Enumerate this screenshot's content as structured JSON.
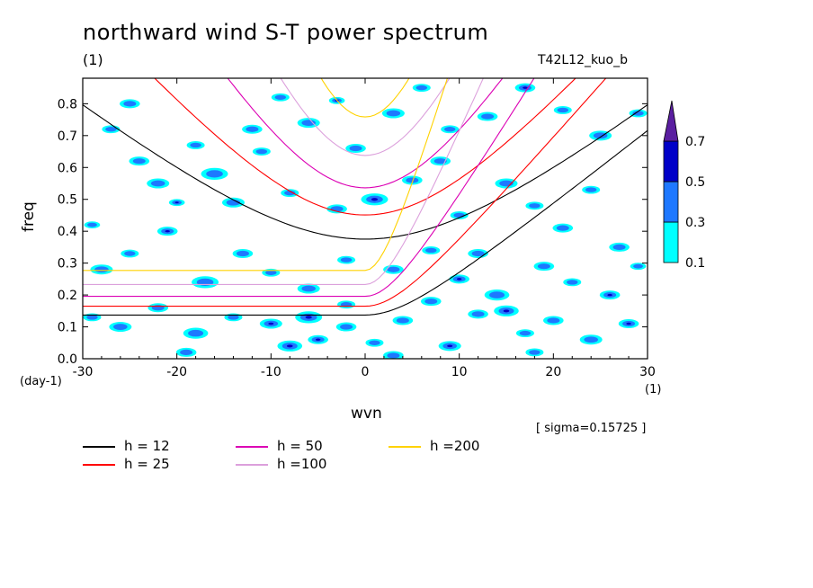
{
  "header": {
    "title": "northward wind S-T power spectrum",
    "unit_top": "(1)",
    "run_name": "T42L12_kuo_b",
    "sigma": "[ sigma=0.15725 ]"
  },
  "chart_data": {
    "type": "contour",
    "xlabel": "wvn",
    "ylabel": "freq",
    "x_unit": "(1)",
    "y_unit": "(day-1)",
    "xlim": [
      -30,
      30
    ],
    "ylim": [
      0,
      0.88
    ],
    "x_ticks": [
      -30,
      -20,
      -10,
      0,
      10,
      20,
      30
    ],
    "x_tick_labels": [
      "-30",
      "-20",
      "-10",
      "0",
      "10",
      "20",
      "30"
    ],
    "y_ticks": [
      0,
      0.1,
      0.2,
      0.3,
      0.4,
      0.5,
      0.6,
      0.7,
      0.8
    ],
    "y_tick_labels": [
      "0.0",
      "0.1",
      "0.2",
      "0.3",
      "0.4",
      "0.5",
      "0.6",
      "0.7",
      "0.8"
    ],
    "contour_levels": [
      0.1,
      0.3,
      0.5,
      0.7
    ],
    "colorbar_labels": [
      "0.1",
      "0.3",
      "0.5",
      "0.7"
    ],
    "colorbar_colors": [
      "#00ffff",
      "#1e78ff",
      "#0000c8",
      "#5a1ea0"
    ],
    "dispersion_curves": [
      {
        "name": "h = 12",
        "h": 12,
        "color": "#000000"
      },
      {
        "name": "h = 25",
        "h": 25,
        "color": "#ff0000"
      },
      {
        "name": "h = 50",
        "h": 50,
        "color": "#dc00b4"
      },
      {
        "name": "h =100",
        "h": 100,
        "color": "#dca0dc"
      },
      {
        "name": "h =200",
        "h": 200,
        "color": "#ffd200"
      }
    ],
    "spectrum_blobs": [
      [
        -29,
        0.42,
        0.7,
        0.3
      ],
      [
        -24,
        0.62,
        0.9,
        0.3
      ],
      [
        -22,
        0.55,
        1.0,
        0.3
      ],
      [
        -20,
        0.49,
        0.7,
        0.5
      ],
      [
        -18,
        0.67,
        0.8,
        0.3
      ],
      [
        -16,
        0.58,
        1.2,
        0.3
      ],
      [
        -12,
        0.72,
        0.9,
        0.3
      ],
      [
        -9,
        0.82,
        0.8,
        0.3
      ],
      [
        -6,
        0.74,
        1.0,
        0.3
      ],
      [
        -3,
        0.81,
        0.7,
        0.5
      ],
      [
        -1,
        0.66,
        0.9,
        0.3
      ],
      [
        3,
        0.77,
        1.0,
        0.3
      ],
      [
        6,
        0.85,
        0.8,
        0.3
      ],
      [
        9,
        0.72,
        0.8,
        0.3
      ],
      [
        13,
        0.76,
        0.9,
        0.3
      ],
      [
        17,
        0.85,
        0.9,
        0.5
      ],
      [
        21,
        0.78,
        0.8,
        0.3
      ],
      [
        25,
        0.7,
        1.0,
        0.3
      ],
      [
        29,
        0.77,
        0.8,
        0.3
      ],
      [
        -27,
        0.72,
        0.8,
        0.3
      ],
      [
        -14,
        0.49,
        1.0,
        0.3
      ],
      [
        -8,
        0.52,
        0.8,
        0.3
      ],
      [
        -3,
        0.47,
        0.9,
        0.3
      ],
      [
        1,
        0.5,
        1.2,
        0.5
      ],
      [
        5,
        0.56,
        0.9,
        0.3
      ],
      [
        10,
        0.45,
        0.8,
        0.3
      ],
      [
        12,
        0.33,
        0.9,
        0.3
      ],
      [
        15,
        0.55,
        1.0,
        0.3
      ],
      [
        18,
        0.48,
        0.8,
        0.3
      ],
      [
        21,
        0.41,
        0.9,
        0.3
      ],
      [
        24,
        0.53,
        0.8,
        0.3
      ],
      [
        27,
        0.35,
        0.9,
        0.3
      ],
      [
        -28,
        0.28,
        1.0,
        0.3
      ],
      [
        -25,
        0.33,
        0.8,
        0.3
      ],
      [
        -21,
        0.4,
        0.9,
        0.5
      ],
      [
        -17,
        0.24,
        1.2,
        0.3
      ],
      [
        -13,
        0.33,
        0.9,
        0.3
      ],
      [
        -10,
        0.27,
        0.8,
        0.3
      ],
      [
        -6,
        0.22,
        1.0,
        0.3
      ],
      [
        -2,
        0.31,
        0.8,
        0.3
      ],
      [
        3,
        0.28,
        0.9,
        0.3
      ],
      [
        7,
        0.34,
        0.8,
        0.3
      ],
      [
        10,
        0.25,
        0.9,
        0.5
      ],
      [
        14,
        0.2,
        1.1,
        0.3
      ],
      [
        19,
        0.29,
        0.9,
        0.3
      ],
      [
        22,
        0.24,
        0.8,
        0.3
      ],
      [
        26,
        0.2,
        0.9,
        0.5
      ],
      [
        29,
        0.29,
        0.7,
        0.3
      ],
      [
        -29,
        0.13,
        0.8,
        0.3
      ],
      [
        -26,
        0.1,
        1.0,
        0.3
      ],
      [
        -22,
        0.16,
        0.9,
        0.3
      ],
      [
        -18,
        0.08,
        1.1,
        0.3
      ],
      [
        -14,
        0.13,
        0.8,
        0.3
      ],
      [
        -10,
        0.11,
        1.0,
        0.5
      ],
      [
        -8,
        0.04,
        1.1,
        0.7
      ],
      [
        -6,
        0.13,
        1.2,
        0.5
      ],
      [
        -5,
        0.06,
        0.9,
        0.7
      ],
      [
        -2,
        0.1,
        0.9,
        0.3
      ],
      [
        1,
        0.05,
        0.8,
        0.3
      ],
      [
        4,
        0.12,
        0.9,
        0.3
      ],
      [
        9,
        0.04,
        1.0,
        0.5
      ],
      [
        12,
        0.14,
        0.9,
        0.3
      ],
      [
        15,
        0.15,
        1.1,
        0.5
      ],
      [
        17,
        0.08,
        0.8,
        0.3
      ],
      [
        20,
        0.12,
        0.9,
        0.3
      ],
      [
        24,
        0.06,
        1.0,
        0.3
      ],
      [
        28,
        0.11,
        0.9,
        0.5
      ],
      [
        -11,
        0.65,
        0.8,
        0.3
      ],
      [
        -25,
        0.8,
        0.9,
        0.3
      ],
      [
        8,
        0.62,
        0.9,
        0.3
      ],
      [
        -19,
        0.02,
        0.9,
        0.3
      ],
      [
        3,
        0.01,
        0.9,
        0.3
      ],
      [
        18,
        0.02,
        0.8,
        0.3
      ],
      [
        -2,
        0.17,
        0.8,
        0.3
      ],
      [
        7,
        0.18,
        0.9,
        0.3
      ]
    ]
  },
  "legend": [
    {
      "label": "h = 12",
      "color": "#000000"
    },
    {
      "label": "h = 25",
      "color": "#ff0000"
    },
    {
      "label": "h = 50",
      "color": "#dc00b4"
    },
    {
      "label": "h =100",
      "color": "#dca0dc"
    },
    {
      "label": "h =200",
      "color": "#ffd200"
    }
  ]
}
